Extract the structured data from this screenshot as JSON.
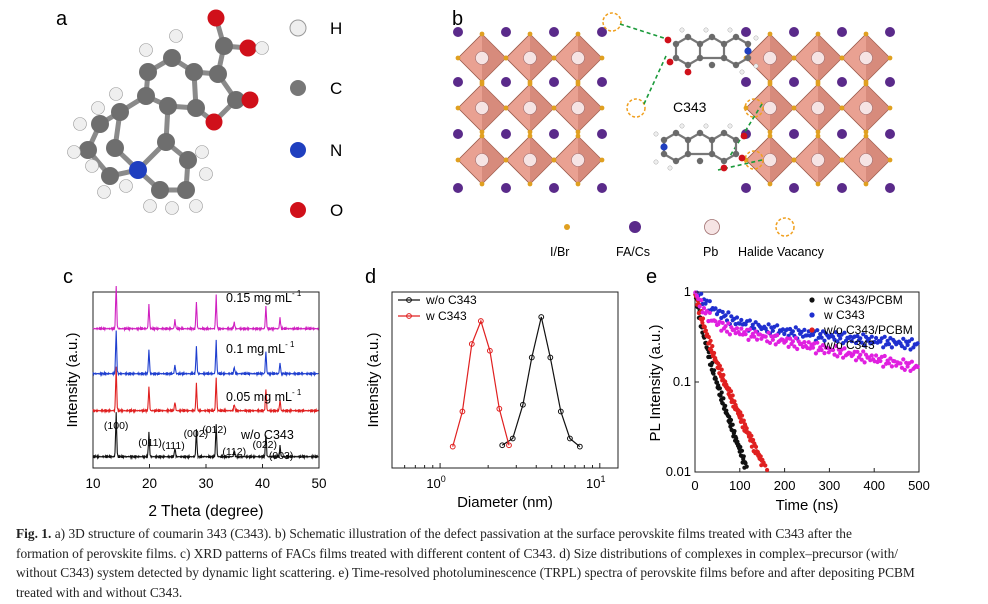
{
  "panel_a": {
    "letter": "a",
    "legend": [
      {
        "label": "H",
        "color": "#e8e8e8"
      },
      {
        "label": "C",
        "color": "#7a7a7a"
      },
      {
        "label": "N",
        "color": "#1f3fbf"
      },
      {
        "label": "O",
        "color": "#d0101a"
      }
    ]
  },
  "panel_b": {
    "letter": "b",
    "molecule_label": "C343",
    "legend": [
      {
        "label": "I/Br",
        "color": "#e0a020"
      },
      {
        "label": "FA/Cs",
        "color": "#5a2a8a"
      },
      {
        "label": "Pb",
        "color": "#f4dede"
      },
      {
        "label": "Halide Vacancy",
        "color": "#f0a020"
      }
    ],
    "colors": {
      "octahedron": "#e8a090",
      "octahedron_dark": "#b86858",
      "passivation_line": "#1a9a3a"
    }
  },
  "chart_data": [
    {
      "panel": "c",
      "type": "line",
      "xlabel": "2 Theta (degree)",
      "ylabel": "Intensity (a.u.)",
      "xlim": [
        10,
        50
      ],
      "xticks": [
        10,
        20,
        30,
        40,
        50
      ],
      "series": [
        {
          "name": "w/o C343",
          "color": "#111111",
          "peaks": [
            14.1,
            19.9,
            24.5,
            28.3,
            31.8,
            35.0,
            40.6,
            43.1
          ],
          "heights": [
            1.0,
            0.55,
            0.2,
            0.6,
            0.75,
            0.15,
            0.5,
            0.25
          ]
        },
        {
          "name": "0.05 mg mL⁻¹",
          "color": "#e02020",
          "peaks": [
            14.1,
            19.9,
            24.5,
            28.3,
            31.8,
            35.0,
            40.6,
            43.1
          ],
          "heights": [
            1.0,
            0.55,
            0.2,
            0.6,
            0.75,
            0.15,
            0.5,
            0.25
          ]
        },
        {
          "name": "0.1 mg mL⁻¹",
          "color": "#1f3fcf",
          "peaks": [
            14.1,
            19.9,
            24.5,
            28.3,
            31.8,
            35.0,
            40.6,
            43.1
          ],
          "heights": [
            1.0,
            0.55,
            0.2,
            0.6,
            0.75,
            0.15,
            0.5,
            0.25
          ]
        },
        {
          "name": "0.15 mg mL⁻¹",
          "color": "#d020c0",
          "peaks": [
            14.1,
            19.9,
            24.5,
            28.3,
            31.8,
            35.0,
            40.6,
            43.1
          ],
          "heights": [
            1.0,
            0.55,
            0.2,
            0.6,
            0.75,
            0.15,
            0.5,
            0.25
          ]
        }
      ],
      "series_labels": [
        "0.15 mg mL",
        "0.1 mg mL",
        "0.05 mg mL",
        "w/o C343"
      ],
      "label_superscript": "- 1",
      "peak_labels": [
        {
          "text": "(100)",
          "x": 14.1
        },
        {
          "text": "(011)",
          "x": 20.1
        },
        {
          "text": "(111)",
          "x": 24.2
        },
        {
          "text": "(002)",
          "x": 28.2
        },
        {
          "text": "(012)",
          "x": 31.5
        },
        {
          "text": "(112)",
          "x": 35.0
        },
        {
          "text": "(022)",
          "x": 40.4
        },
        {
          "text": "(003)",
          "x": 43.3
        }
      ]
    },
    {
      "panel": "d",
      "type": "line",
      "xlabel": "Diameter (nm)",
      "ylabel": "Intensity (a.u.)",
      "xscale": "log",
      "xlim": [
        0.5,
        13
      ],
      "xtick_labels": [
        "10",
        "10"
      ],
      "xtick_exponents": [
        "0",
        "1"
      ],
      "series": [
        {
          "name": "w/o C343",
          "color": "#111111",
          "x": [
            2.45,
            2.85,
            3.3,
            3.75,
            4.3,
            4.9,
            5.7,
            6.5,
            7.5
          ],
          "y": [
            0.05,
            0.1,
            0.35,
            0.7,
            1.0,
            0.7,
            0.3,
            0.1,
            0.04
          ]
        },
        {
          "name": "w C343",
          "color": "#e02020",
          "x": [
            1.2,
            1.38,
            1.58,
            1.8,
            2.05,
            2.35,
            2.7
          ],
          "y": [
            0.04,
            0.3,
            0.8,
            0.97,
            0.75,
            0.32,
            0.05
          ]
        }
      ]
    },
    {
      "panel": "e",
      "type": "scatter",
      "xlabel": "Time (ns)",
      "ylabel": "PL Intensity (a.u.)",
      "xlim": [
        0,
        500
      ],
      "ylim": [
        0.01,
        1
      ],
      "yscale": "log",
      "xticks": [
        0,
        100,
        200,
        300,
        400,
        500
      ],
      "ytick_labels": [
        "0.01",
        "0.1",
        "1"
      ],
      "series": [
        {
          "name": "w C343/PCBM",
          "color": "#111111",
          "a1": 0.6,
          "t1": 12,
          "a2": 0.4,
          "t2": 32,
          "tmax": 150
        },
        {
          "name": "w C343",
          "color": "#1f2fcf",
          "a1": 0.55,
          "t1": 45,
          "a2": 0.45,
          "t2": 900,
          "tmax": 500
        },
        {
          "name": "w/o C343/PCBM",
          "color": "#e02020",
          "a1": 0.55,
          "t1": 15,
          "a2": 0.45,
          "t2": 42,
          "tmax": 205
        },
        {
          "name": "w/o C343",
          "color": "#e020e0",
          "a1": 0.55,
          "t1": 20,
          "a2": 0.45,
          "t2": 440,
          "tmax": 500
        }
      ]
    }
  ],
  "caption": {
    "label": "Fig. 1.",
    "lines": [
      "a) 3D structure of coumarin 343 (C343). b) Schematic illustration of the defect passivation at the surface perovskite films treated with C343 after the",
      "formation of perovskite films. c) XRD patterns of FACs films treated with different content of C343. d) Size distributions of complexes in complex–precursor (with/",
      "without C343) system detected by dynamic light scattering. e) Time-resolved photoluminescence (TRPL) spectra of perovskite films before and after depositing PCBM",
      "treated with and without C343."
    ]
  }
}
